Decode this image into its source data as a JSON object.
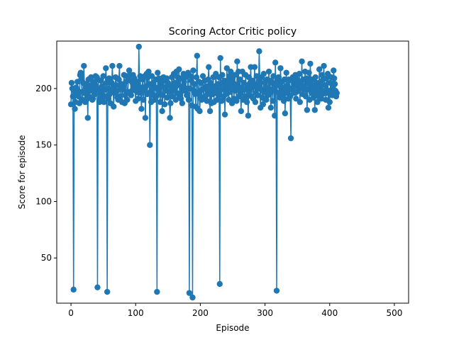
{
  "chart_data": {
    "type": "line",
    "title": "Scoring Actor Critic policy",
    "xlabel": "Episode",
    "ylabel": "Score for episode",
    "xlim": [
      -22,
      522
    ],
    "ylim": [
      10,
      242
    ],
    "xticks": [
      0,
      100,
      200,
      300,
      400,
      500
    ],
    "yticks": [
      50,
      100,
      150,
      200
    ],
    "grid": false,
    "legend": "none",
    "colors": {
      "series": "#1f77b4"
    },
    "marker": "circle",
    "series": [
      {
        "values": [
          186,
          205,
          200,
          193,
          22,
          198,
          182,
          188,
          201,
          195,
          206,
          198,
          193,
          187,
          212,
          214,
          209,
          197,
          190,
          205,
          220,
          196,
          188,
          201,
          190,
          204,
          174,
          208,
          193,
          198,
          201,
          210,
          203,
          190,
          191,
          206,
          198,
          195,
          211,
          202,
          210,
          24,
          208,
          199,
          188,
          190,
          207,
          196,
          202,
          193,
          211,
          188,
          193,
          199,
          218,
          205,
          20,
          200,
          191,
          209,
          195,
          187,
          198,
          205,
          220,
          202,
          184,
          198,
          196,
          210,
          203,
          198,
          192,
          190,
          208,
          220,
          193,
          200,
          204,
          188,
          202,
          199,
          212,
          187,
          194,
          206,
          211,
          190,
          197,
          210,
          216,
          212,
          207,
          194,
          198,
          205,
          212,
          202,
          209,
          200,
          189,
          203,
          197,
          206,
          191,
          237,
          200,
          211,
          196,
          182,
          201,
          208,
          190,
          199,
          211,
          174,
          202,
          213,
          195,
          210,
          215,
          204,
          150,
          197,
          188,
          211,
          200,
          205,
          194,
          190,
          201,
          208,
          193,
          20,
          214,
          199,
          209,
          196,
          188,
          203,
          207,
          180,
          194,
          210,
          201,
          186,
          207,
          198,
          209,
          192,
          205,
          203,
          197,
          174,
          187,
          201,
          210,
          193,
          198,
          213,
          205,
          200,
          190,
          215,
          196,
          210,
          203,
          217,
          193,
          209,
          191,
          202,
          187,
          198,
          213,
          206,
          199,
          210,
          200,
          194,
          195,
          214,
          190,
          19,
          200,
          211,
          207,
          185,
          15,
          216,
          198,
          204,
          195,
          184,
          210,
          229,
          182,
          197,
          206,
          180,
          193,
          205,
          190,
          199,
          211,
          192,
          200,
          207,
          193,
          202,
          189,
          195,
          208,
          219,
          198,
          180,
          205,
          187,
          201,
          195,
          210,
          188,
          202,
          196,
          213,
          200,
          190,
          204,
          194,
          210,
          27,
          227,
          199,
          189,
          212,
          205,
          193,
          207,
          177,
          202,
          195,
          218,
          200,
          207,
          190,
          211,
          197,
          215,
          200,
          187,
          209,
          205,
          191,
          212,
          198,
          203,
          189,
          224,
          200,
          215,
          193,
          208,
          196,
          180,
          201,
          215,
          190,
          205,
          199,
          193,
          212,
          200,
          188,
          203,
          176,
          210,
          197,
          205,
          219,
          193,
          201,
          207,
          191,
          204,
          219,
          188,
          196,
          211,
          200,
          194,
          203,
          233,
          207,
          183,
          199,
          210,
          192,
          186,
          213,
          197,
          205,
          201,
          190,
          208,
          194,
          200,
          215,
          196,
          207,
          183,
          199,
          205,
          189,
          211,
          201,
          176,
          223,
          197,
          21,
          207,
          203,
          210,
          196,
          192,
          218,
          200,
          206,
          193,
          201,
          189,
          208,
          178,
          200,
          214,
          196,
          203,
          191,
          208,
          200,
          193,
          156,
          207,
          199,
          210,
          196,
          202,
          205,
          212,
          191,
          197,
          208,
          203,
          199,
          213,
          188,
          206,
          201,
          224,
          195,
          208,
          199,
          202,
          215,
          193,
          209,
          181,
          199,
          205,
          214,
          190,
          222,
          203,
          196,
          208,
          200,
          192,
          203,
          181,
          210,
          196,
          205,
          188,
          201,
          193,
          217,
          198,
          206,
          191,
          212,
          195,
          208,
          220,
          198,
          203,
          190,
          209,
          196,
          213,
          183,
          198,
          188,
          205,
          210,
          196,
          194,
          201,
          216,
          209,
          204,
          198,
          193,
          196
        ]
      }
    ]
  }
}
